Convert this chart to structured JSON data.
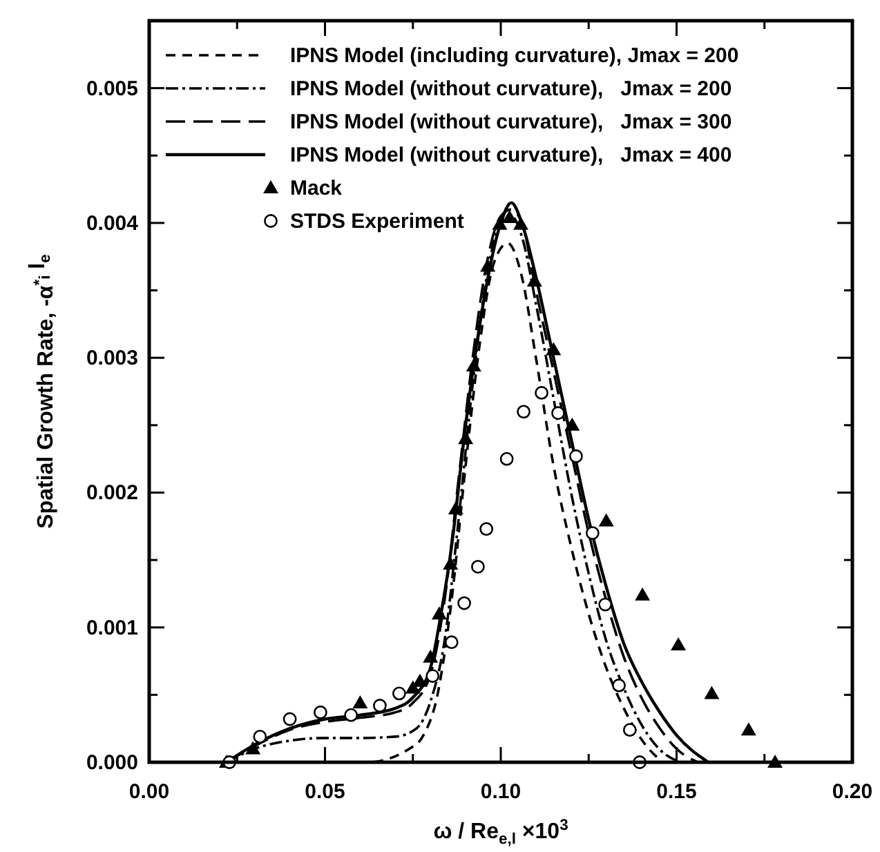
{
  "chart_data": {
    "type": "line",
    "xlabel": "ω / Re$_{e,l}$ ×10$^{3}$",
    "ylabel": "Spatial Growth Rate, -α$^{*}$$_{i}$ l$_{e}$",
    "xlim": [
      0,
      0.2
    ],
    "ylim": [
      0,
      0.0055
    ],
    "xticks": [
      {
        "value": 0,
        "label": "0.00"
      },
      {
        "value": 0.025,
        "label": null
      },
      {
        "value": 0.05,
        "label": "0.05"
      },
      {
        "value": 0.075,
        "label": null
      },
      {
        "value": 0.1,
        "label": "0.10"
      },
      {
        "value": 0.125,
        "label": null
      },
      {
        "value": 0.15,
        "label": "0.15"
      },
      {
        "value": 0.175,
        "label": null
      },
      {
        "value": 0.2,
        "label": "0.20"
      }
    ],
    "yticks": [
      {
        "value": 0,
        "label": "0.000"
      },
      {
        "value": 0.0005,
        "label": null
      },
      {
        "value": 0.001,
        "label": "0.001"
      },
      {
        "value": 0.0015,
        "label": null
      },
      {
        "value": 0.002,
        "label": "0.002"
      },
      {
        "value": 0.0025,
        "label": null
      },
      {
        "value": 0.003,
        "label": "0.003"
      },
      {
        "value": 0.0035,
        "label": null
      },
      {
        "value": 0.004,
        "label": "0.004"
      },
      {
        "value": 0.0045,
        "label": null
      },
      {
        "value": 0.005,
        "label": "0.005"
      }
    ],
    "legend": "top left",
    "grid": false,
    "series": [
      {
        "name": "IPNS Model (including curvature), Jmax = 200",
        "color": "#000000",
        "line_style": "dashed",
        "x": [
          0.045,
          0.062,
          0.074,
          0.078,
          0.082,
          0.086,
          0.09,
          0.094,
          0.098,
          0.102,
          0.106,
          0.11,
          0.115,
          0.12,
          0.125,
          0.13,
          0.135,
          0.14,
          0.146
        ],
        "values": [
          0,
          0,
          0.0001,
          0.0002,
          0.0005,
          0.0012,
          0.0022,
          0.0031,
          0.0037,
          0.00385,
          0.0036,
          0.003,
          0.0022,
          0.0016,
          0.0011,
          0.0007,
          0.0004,
          0.00017,
          0
        ]
      },
      {
        "name": "IPNS Model (without curvature),   Jmax = 200",
        "color": "#000000",
        "line_style": "dashdot",
        "x": [
          0.022,
          0.03,
          0.04,
          0.05,
          0.06,
          0.07,
          0.076,
          0.08,
          0.084,
          0.088,
          0.092,
          0.096,
          0.1,
          0.103,
          0.106,
          0.11,
          0.115,
          0.12,
          0.125,
          0.13,
          0.135,
          0.14,
          0.145,
          0.151
        ],
        "values": [
          0,
          0.0001,
          0.00016,
          0.00018,
          0.00018,
          0.00019,
          0.00025,
          0.00045,
          0.0009,
          0.0018,
          0.0028,
          0.0036,
          0.004,
          0.00405,
          0.0039,
          0.0034,
          0.0027,
          0.002,
          0.0014,
          0.0009,
          0.00055,
          0.00028,
          0.0001,
          0
        ]
      },
      {
        "name": "IPNS Model (without curvature),   Jmax = 300",
        "color": "#000000",
        "line_style": "longdash",
        "x": [
          0.022,
          0.03,
          0.04,
          0.05,
          0.06,
          0.07,
          0.075,
          0.08,
          0.084,
          0.088,
          0.092,
          0.096,
          0.1,
          0.103,
          0.106,
          0.11,
          0.115,
          0.12,
          0.125,
          0.13,
          0.135,
          0.14,
          0.145,
          0.15,
          0.156
        ],
        "values": [
          0,
          0.00012,
          0.00024,
          0.0003,
          0.00033,
          0.00037,
          0.00044,
          0.00065,
          0.0012,
          0.0021,
          0.003,
          0.0037,
          0.00405,
          0.0041,
          0.004,
          0.0035,
          0.0029,
          0.0023,
          0.0017,
          0.0012,
          0.00078,
          0.00048,
          0.00026,
          0.0001,
          0
        ]
      },
      {
        "name": "IPNS Model (without curvature),   Jmax = 400",
        "color": "#000000",
        "line_style": "solid",
        "x": [
          0.022,
          0.03,
          0.04,
          0.05,
          0.06,
          0.07,
          0.075,
          0.08,
          0.083,
          0.086,
          0.09,
          0.095,
          0.1,
          0.103,
          0.106,
          0.11,
          0.115,
          0.12,
          0.125,
          0.13,
          0.135,
          0.14,
          0.145,
          0.15,
          0.159
        ],
        "values": [
          0,
          0.00013,
          0.00025,
          0.00032,
          0.00035,
          0.0004,
          0.00048,
          0.0007,
          0.0011,
          0.0016,
          0.0025,
          0.0034,
          0.004,
          0.00415,
          0.004,
          0.0036,
          0.003,
          0.0024,
          0.0018,
          0.0013,
          0.00088,
          0.0006,
          0.00038,
          0.0002,
          0
        ]
      },
      {
        "name": "Mack",
        "type": "scatter",
        "marker": "triangle",
        "color": "#000000",
        "x": [
          0.022,
          0.0295,
          0.06,
          0.075,
          0.077,
          0.08,
          0.0825,
          0.0857,
          0.0872,
          0.09,
          0.0923,
          0.0963,
          0.0997,
          0.1025,
          0.1057,
          0.1096,
          0.115,
          0.1203,
          0.13,
          0.1403,
          0.1505,
          0.16,
          0.1705,
          0.178
        ],
        "values": [
          0,
          0.0001,
          0.00044,
          0.00055,
          0.0006,
          0.00078,
          0.0011,
          0.00147,
          0.00188,
          0.0024,
          0.00294,
          0.00368,
          0.00399,
          0.00404,
          0.00399,
          0.00357,
          0.00306,
          0.0025,
          0.00179,
          0.00124,
          0.00087,
          0.00051,
          0.00024,
          0
        ]
      },
      {
        "name": "STDS Experiment",
        "type": "scatter",
        "marker": "circle",
        "color": "#000000",
        "x": [
          0.0228,
          0.0315,
          0.04,
          0.0487,
          0.0574,
          0.0656,
          0.0711,
          0.0806,
          0.086,
          0.0896,
          0.0935,
          0.0959,
          0.1017,
          0.1065,
          0.1116,
          0.1163,
          0.1214,
          0.1261,
          0.1297,
          0.1336,
          0.1367,
          0.1395
        ],
        "values": [
          0,
          0.00019,
          0.00032,
          0.00037,
          0.00035,
          0.00042,
          0.00051,
          0.00064,
          0.00089,
          0.00118,
          0.00145,
          0.00173,
          0.00225,
          0.0026,
          0.00274,
          0.00259,
          0.00227,
          0.0017,
          0.00117,
          0.00057,
          0.00024,
          0
        ]
      }
    ]
  }
}
